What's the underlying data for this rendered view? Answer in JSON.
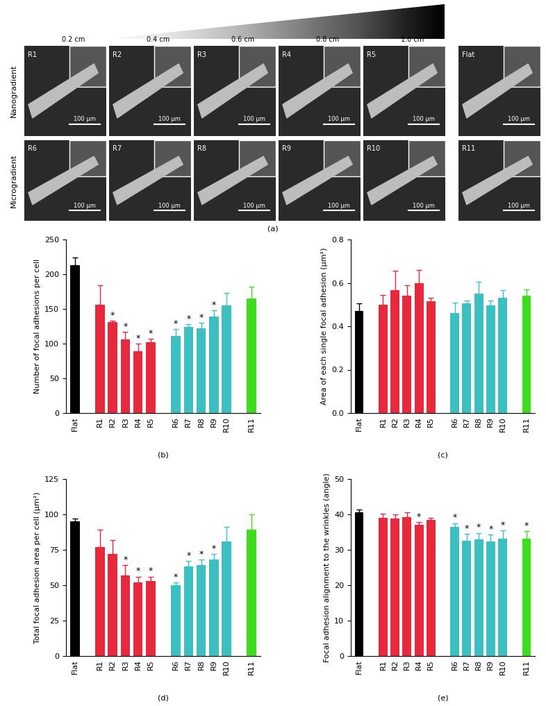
{
  "panel_a": {
    "caption": "(a)",
    "gradient_labels": [
      "0.2 cm",
      "0.4 cm",
      "0.6 cm",
      "0.8 cm",
      "1.0 cm"
    ],
    "rows": [
      {
        "label": "Nanogradient",
        "panels": [
          "R1",
          "R2",
          "R3",
          "R4",
          "R5",
          "Flat"
        ]
      },
      {
        "label": "Microgradient",
        "panels": [
          "R6",
          "R7",
          "R8",
          "R9",
          "R10",
          "R11"
        ]
      }
    ],
    "scale_bar": "100 μm"
  },
  "chart_data": [
    {
      "type": "bar",
      "caption": "(b)",
      "y_label": "Number of focal adhesions per cell",
      "categories": [
        "Flat",
        null,
        "R1",
        "R2",
        "R3",
        "R4",
        "R5",
        null,
        "R6",
        "R7",
        "R8",
        "R9",
        "R10",
        null,
        "R11"
      ],
      "values": [
        213,
        null,
        156,
        131,
        106,
        89,
        102,
        null,
        111,
        124,
        122,
        139,
        155,
        null,
        165
      ],
      "errors": [
        11,
        null,
        28,
        2,
        11,
        11,
        5,
        null,
        10,
        4,
        8,
        9,
        18,
        null,
        17
      ],
      "significance": [
        null,
        null,
        null,
        "*",
        "*",
        "*",
        "*",
        null,
        "*",
        "*",
        "*",
        "*",
        null,
        null,
        null
      ],
      "colors": [
        "#000000",
        null,
        "#e8283c",
        "#e8283c",
        "#e8283c",
        "#e8283c",
        "#e8283c",
        null,
        "#3bbfc0",
        "#3bbfc0",
        "#3bbfc0",
        "#3bbfc0",
        "#3bbfc0",
        null,
        "#3fdc1e"
      ],
      "ylim": [
        0,
        250
      ],
      "yticks": [
        0,
        50,
        100,
        150,
        200,
        250
      ]
    },
    {
      "type": "bar",
      "caption": "(c)",
      "y_label": "Area of each single focal adhesion (μm²)",
      "categories": [
        "Flat",
        null,
        "R1",
        "R2",
        "R3",
        "R4",
        "R5",
        null,
        "R6",
        "R7",
        "R8",
        "R9",
        "R10",
        null,
        "R11"
      ],
      "values": [
        0.47,
        null,
        0.5,
        0.565,
        0.54,
        0.6,
        0.515,
        null,
        0.46,
        0.505,
        0.55,
        0.495,
        0.53,
        null,
        0.54
      ],
      "errors": [
        0.035,
        null,
        0.045,
        0.09,
        0.05,
        0.06,
        0.015,
        null,
        0.05,
        0.015,
        0.055,
        0.025,
        0.035,
        null,
        0.03
      ],
      "significance": [
        null,
        null,
        null,
        null,
        null,
        null,
        null,
        null,
        null,
        null,
        null,
        null,
        null,
        null,
        null
      ],
      "colors": [
        "#000000",
        null,
        "#e8283c",
        "#e8283c",
        "#e8283c",
        "#e8283c",
        "#e8283c",
        null,
        "#3bbfc0",
        "#3bbfc0",
        "#3bbfc0",
        "#3bbfc0",
        "#3bbfc0",
        null,
        "#3fdc1e"
      ],
      "ylim": [
        0,
        0.8
      ],
      "yticks": [
        {
          "value": 0,
          "label": "0.0"
        },
        0.2,
        0.4,
        0.6,
        0.8
      ]
    },
    {
      "type": "bar",
      "caption": "(d)",
      "y_label": "Total focal adhesion area per cell (μm²)",
      "categories": [
        "Flat",
        null,
        "R1",
        "R2",
        "R3",
        "R4",
        "R5",
        null,
        "R6",
        "R7",
        "R8",
        "R9",
        "R10",
        null,
        "R11"
      ],
      "values": [
        95,
        null,
        77,
        72,
        57,
        52,
        53,
        null,
        50,
        63,
        64,
        68,
        81,
        null,
        89
      ],
      "errors": [
        2,
        null,
        12,
        10,
        7,
        4,
        3,
        null,
        2,
        4,
        4,
        4,
        10,
        null,
        11
      ],
      "significance": [
        null,
        null,
        null,
        null,
        "*",
        "*",
        "*",
        null,
        "*",
        "*",
        "*",
        "*",
        null,
        null,
        null
      ],
      "colors": [
        "#000000",
        null,
        "#e8283c",
        "#e8283c",
        "#e8283c",
        "#e8283c",
        "#e8283c",
        null,
        "#3bbfc0",
        "#3bbfc0",
        "#3bbfc0",
        "#3bbfc0",
        "#3bbfc0",
        null,
        "#3fdc1e"
      ],
      "ylim": [
        0,
        125
      ],
      "yticks": [
        0,
        25,
        50,
        75,
        100,
        125
      ]
    },
    {
      "type": "bar",
      "caption": "(e)",
      "y_label": "Focal adhesion alignment to the wrinkles (angle)",
      "categories": [
        "Flat",
        null,
        "R1",
        "R2",
        "R3",
        "R4",
        "R5",
        null,
        "R6",
        "R7",
        "R8",
        "R9",
        "R10",
        null,
        "R11"
      ],
      "values": [
        40.5,
        null,
        39,
        38.8,
        39.3,
        37,
        38.5,
        null,
        36.5,
        32.5,
        33,
        32.3,
        33.2,
        null,
        33.2
      ],
      "errors": [
        0.8,
        null,
        1.2,
        1.2,
        1.2,
        0.8,
        0.5,
        null,
        1,
        2,
        1.8,
        2,
        2.2,
        null,
        2
      ],
      "significance": [
        null,
        null,
        null,
        null,
        null,
        "*",
        null,
        null,
        "*",
        "*",
        "*",
        "*",
        "*",
        null,
        "*"
      ],
      "colors": [
        "#000000",
        null,
        "#e8283c",
        "#e8283c",
        "#e8283c",
        "#e8283c",
        "#e8283c",
        null,
        "#3bbfc0",
        "#3bbfc0",
        "#3bbfc0",
        "#3bbfc0",
        "#3bbfc0",
        null,
        "#3fdc1e"
      ],
      "ylim": [
        0,
        50
      ],
      "yticks": [
        0,
        10,
        20,
        30,
        40,
        50
      ]
    }
  ]
}
